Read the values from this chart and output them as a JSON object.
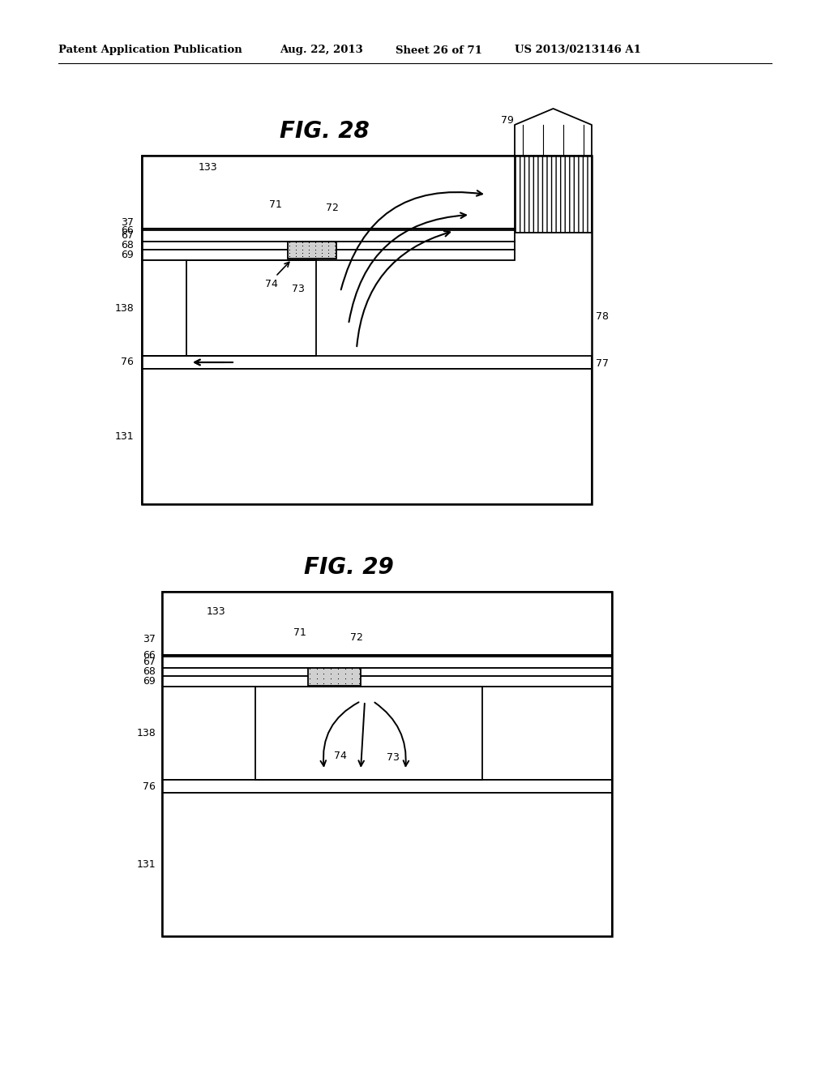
{
  "bg_color": "#ffffff",
  "header_text": "Patent Application Publication",
  "header_date": "Aug. 22, 2013",
  "header_sheet": "Sheet 26 of 71",
  "header_patent": "US 2013/0213146 A1",
  "fig28_title": "FIG. 28",
  "fig29_title": "FIG. 29"
}
